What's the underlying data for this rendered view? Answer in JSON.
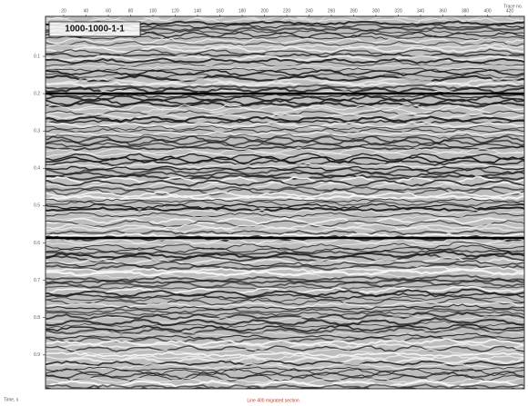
{
  "figure": {
    "box_label": "1000-1000-1-1",
    "top_right_label": "Trace no.",
    "top_ticks": [
      "20",
      "40",
      "60",
      "80",
      "100",
      "120",
      "140",
      "160",
      "180",
      "200",
      "220",
      "240",
      "260",
      "280",
      "300",
      "320",
      "340",
      "360",
      "380",
      "400",
      "420"
    ],
    "left_ticks": [
      "0.1",
      "0.2",
      "0.3",
      "0.4",
      "0.5",
      "0.6",
      "0.7",
      "0.8",
      "0.9"
    ],
    "bottom_left_label": "Time, s",
    "caption": "Line 400 migrated section"
  }
}
